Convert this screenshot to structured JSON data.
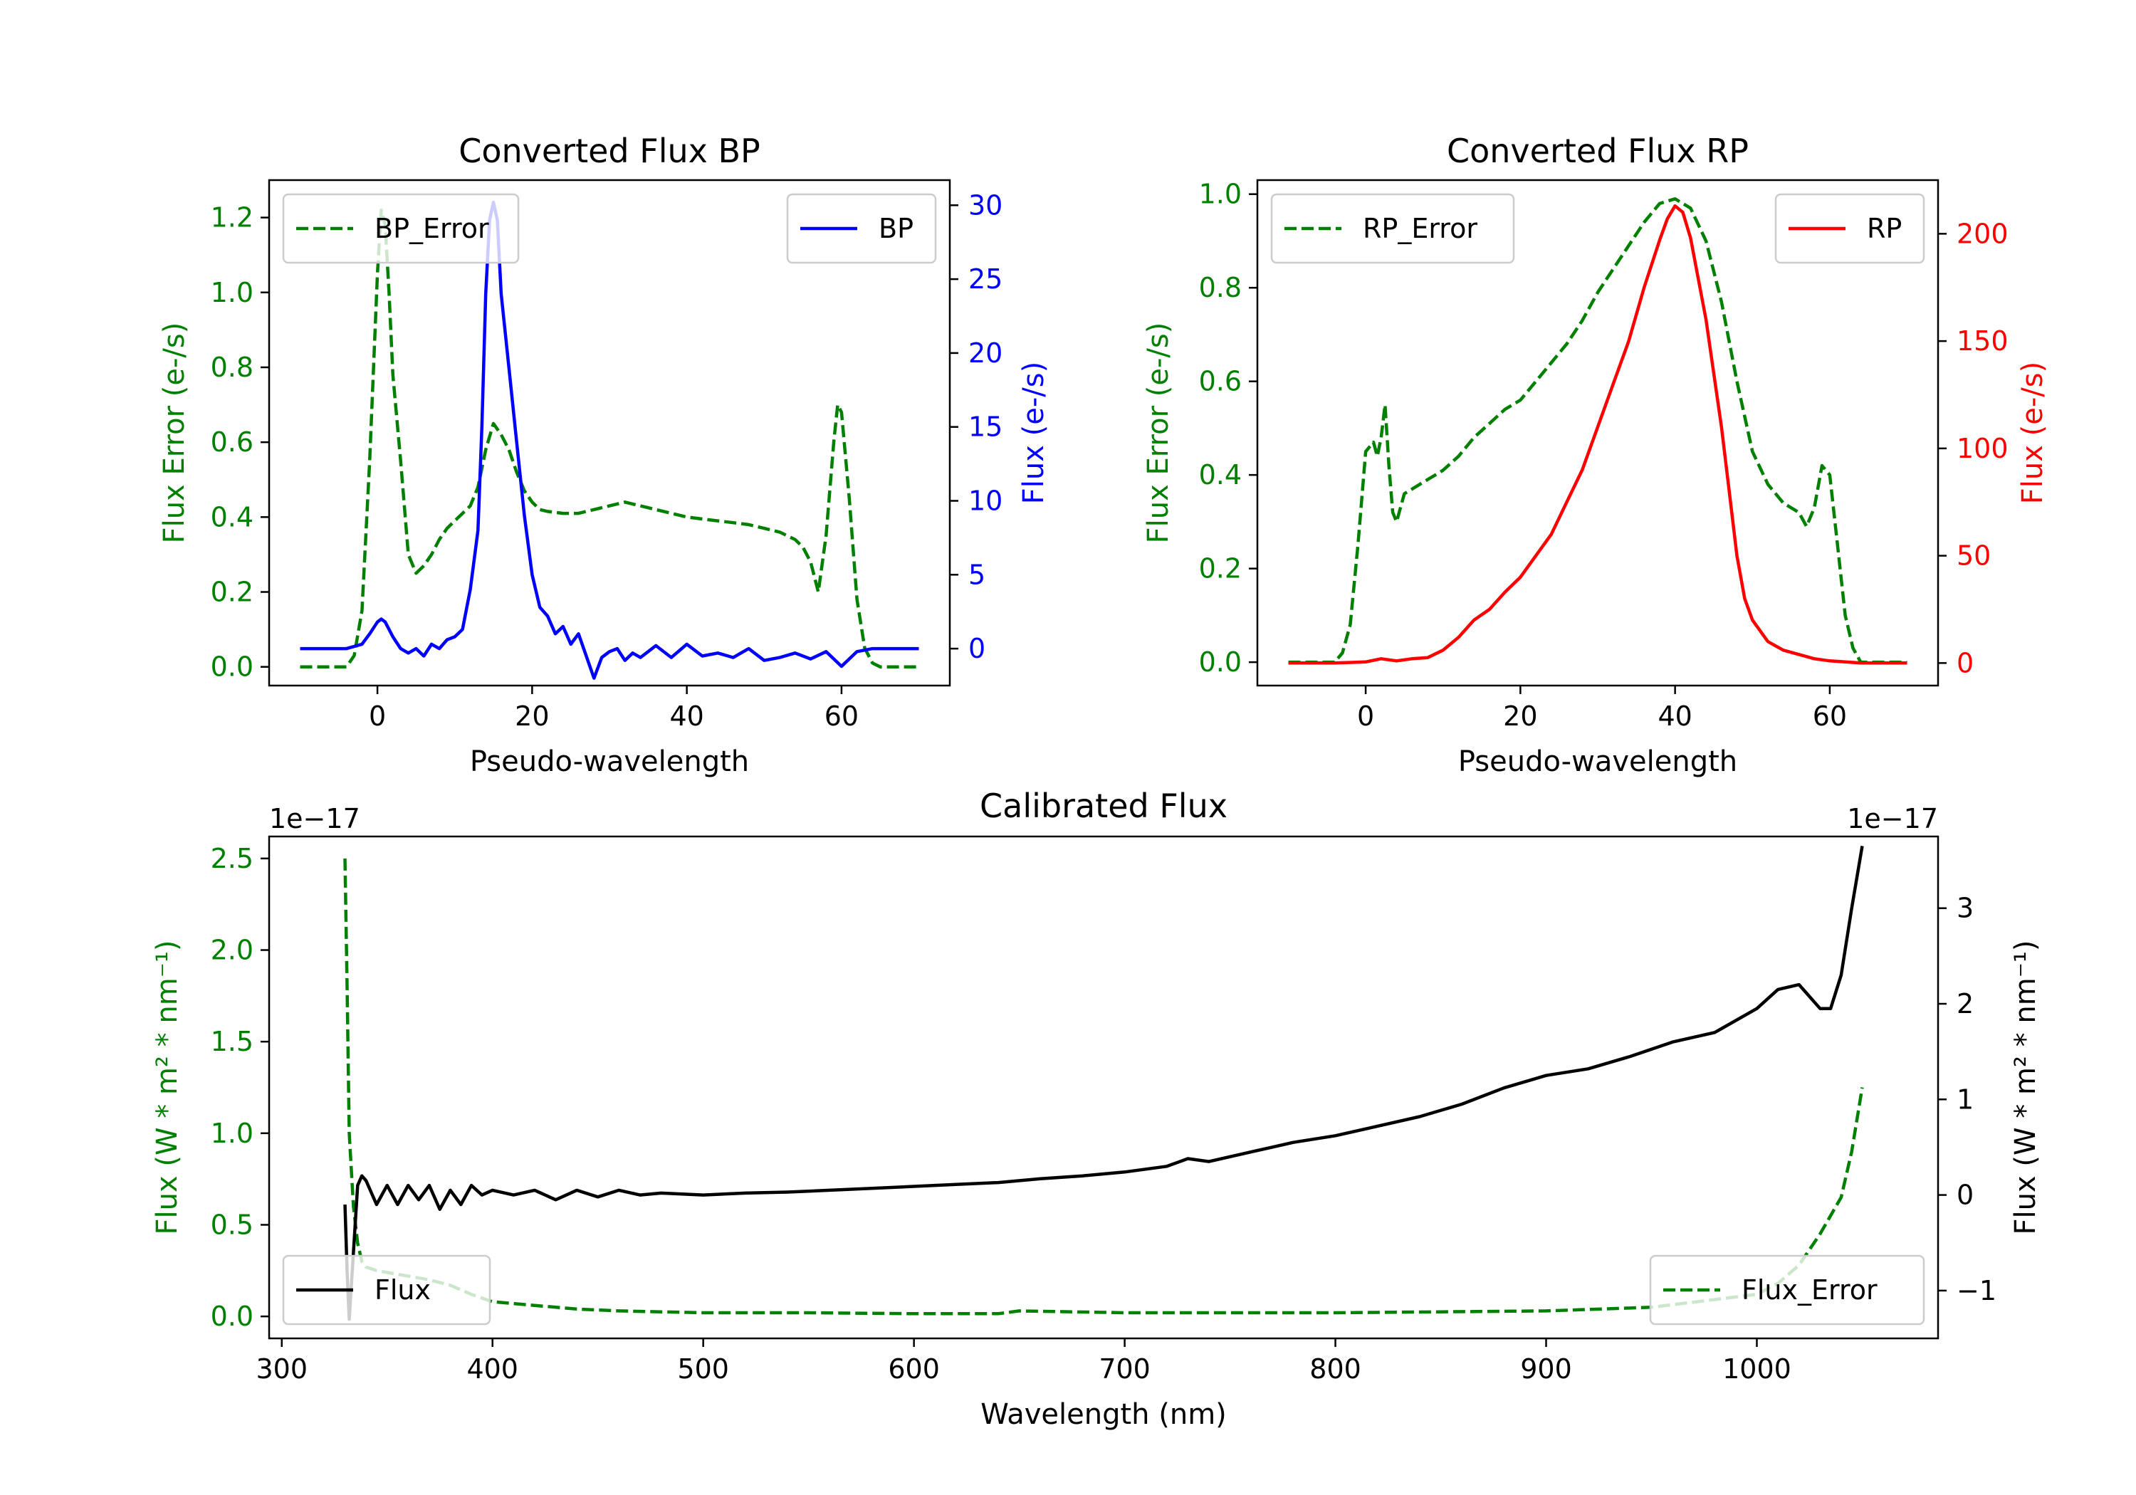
{
  "chart_data": [
    {
      "id": "bp",
      "type": "line",
      "title": "Converted Flux BP",
      "xlabel": "Pseudo-wavelength",
      "ylabel_left": "Flux Error (e-/s)",
      "ylabel_right": "Flux (e-/s)",
      "xlim": [
        -14,
        74
      ],
      "ylim_left": [
        -0.05,
        1.3
      ],
      "ylim_right": [
        -2.5,
        31.7
      ],
      "xticks": [
        0,
        20,
        40,
        60
      ],
      "yticks_left": [
        0.0,
        0.2,
        0.4,
        0.6,
        0.8,
        1.0,
        1.2
      ],
      "yticks_right": [
        0,
        5,
        10,
        15,
        20,
        25,
        30
      ],
      "colors": {
        "left": "#008000",
        "right": "#0000ff"
      },
      "series": [
        {
          "name": "BP_Error",
          "axis": "left",
          "style": "dashed",
          "color": "#008000",
          "x": [
            -10,
            -4,
            -3,
            -2,
            -1,
            0,
            0.5,
            1,
            1.5,
            2,
            3,
            4,
            5,
            6,
            7,
            8,
            9,
            10,
            11,
            12,
            13,
            14,
            15,
            16,
            17,
            18,
            19,
            20,
            21,
            22,
            24,
            26,
            28,
            30,
            32,
            34,
            36,
            38,
            40,
            42,
            44,
            46,
            48,
            50,
            52,
            54,
            55,
            56,
            57,
            58,
            59,
            59.5,
            60,
            61,
            62,
            63,
            64,
            65,
            70
          ],
          "y": [
            0.0,
            0.0,
            0.03,
            0.15,
            0.55,
            1.05,
            1.22,
            1.18,
            1.0,
            0.78,
            0.55,
            0.3,
            0.25,
            0.27,
            0.3,
            0.34,
            0.37,
            0.39,
            0.41,
            0.43,
            0.48,
            0.58,
            0.65,
            0.62,
            0.58,
            0.52,
            0.47,
            0.44,
            0.42,
            0.415,
            0.41,
            0.41,
            0.42,
            0.43,
            0.44,
            0.43,
            0.42,
            0.41,
            0.4,
            0.395,
            0.39,
            0.385,
            0.38,
            0.37,
            0.36,
            0.34,
            0.32,
            0.28,
            0.2,
            0.35,
            0.6,
            0.7,
            0.68,
            0.45,
            0.18,
            0.05,
            0.01,
            0.0,
            0.0
          ]
        },
        {
          "name": "BP",
          "axis": "right",
          "style": "solid",
          "color": "#0000ff",
          "x": [
            -10,
            -4,
            -2,
            -1,
            0,
            0.5,
            1,
            2,
            3,
            4,
            5,
            6,
            7,
            8,
            9,
            10,
            11,
            12,
            13,
            13.5,
            14,
            14.5,
            15,
            15.5,
            16,
            17,
            18,
            19,
            20,
            21,
            22,
            23,
            24,
            25,
            26,
            27,
            28,
            29,
            30,
            31,
            32,
            33,
            34,
            35,
            36,
            38,
            40,
            42,
            44,
            46,
            48,
            50,
            52,
            54,
            56,
            58,
            60,
            62,
            64,
            70
          ],
          "y": [
            0.0,
            0.0,
            0.3,
            1.0,
            1.8,
            2.0,
            1.8,
            0.8,
            0.0,
            -0.3,
            0.0,
            -0.5,
            0.3,
            0.0,
            0.6,
            0.8,
            1.3,
            4.0,
            8.0,
            15.0,
            24.0,
            29.0,
            30.2,
            29.0,
            24.0,
            19.0,
            14.0,
            9.0,
            5.0,
            2.8,
            2.2,
            1.0,
            1.5,
            0.3,
            1.0,
            -0.5,
            -2.0,
            -0.6,
            -0.2,
            0.0,
            -0.8,
            -0.3,
            -0.6,
            -0.2,
            0.2,
            -0.6,
            0.3,
            -0.5,
            -0.3,
            -0.6,
            0.0,
            -0.8,
            -0.6,
            -0.3,
            -0.7,
            -0.2,
            -1.2,
            -0.2,
            0.0,
            0.0
          ]
        }
      ],
      "legends": [
        {
          "entries": [
            "BP_Error"
          ],
          "location": "upper left"
        },
        {
          "entries": [
            "BP"
          ],
          "location": "upper right"
        }
      ]
    },
    {
      "id": "rp",
      "type": "line",
      "title": "Converted Flux RP",
      "xlabel": "Pseudo-wavelength",
      "ylabel_left": "Flux Error (e-/s)",
      "ylabel_right": "Flux (e-/s)",
      "xlim": [
        -14,
        74
      ],
      "ylim_left": [
        -0.05,
        1.03
      ],
      "ylim_right": [
        -10.5,
        225
      ],
      "xticks": [
        0,
        20,
        40,
        60
      ],
      "yticks_left": [
        0.0,
        0.2,
        0.4,
        0.6,
        0.8,
        1.0
      ],
      "yticks_right": [
        0,
        50,
        100,
        150,
        200
      ],
      "colors": {
        "left": "#008000",
        "right": "#ff0000"
      },
      "series": [
        {
          "name": "RP_Error",
          "axis": "left",
          "style": "dashed",
          "color": "#008000",
          "x": [
            -10,
            -4,
            -3,
            -2,
            -1,
            0,
            1,
            1.5,
            2,
            2.5,
            3,
            3.5,
            4,
            5,
            6,
            7,
            8,
            9,
            10,
            12,
            14,
            16,
            18,
            20,
            22,
            24,
            26,
            28,
            30,
            32,
            34,
            36,
            38,
            40,
            42,
            44,
            46,
            48,
            50,
            52,
            54,
            56,
            57,
            58,
            59,
            60,
            61,
            62,
            63,
            64,
            70
          ],
          "y": [
            0.0,
            0.0,
            0.02,
            0.08,
            0.25,
            0.45,
            0.47,
            0.44,
            0.48,
            0.55,
            0.42,
            0.32,
            0.3,
            0.36,
            0.37,
            0.38,
            0.39,
            0.4,
            0.41,
            0.44,
            0.48,
            0.51,
            0.54,
            0.56,
            0.6,
            0.64,
            0.68,
            0.73,
            0.79,
            0.84,
            0.89,
            0.94,
            0.98,
            0.99,
            0.97,
            0.9,
            0.77,
            0.6,
            0.45,
            0.38,
            0.34,
            0.32,
            0.29,
            0.33,
            0.42,
            0.4,
            0.25,
            0.1,
            0.03,
            0.0,
            0.0
          ]
        },
        {
          "name": "RP",
          "axis": "right",
          "style": "solid",
          "color": "#ff0000",
          "x": [
            -10,
            -4,
            0,
            2,
            4,
            6,
            8,
            10,
            12,
            14,
            16,
            18,
            20,
            22,
            24,
            26,
            28,
            30,
            32,
            34,
            36,
            38,
            39,
            40,
            41,
            42,
            44,
            46,
            47,
            48,
            49,
            50,
            52,
            54,
            56,
            58,
            60,
            62,
            64,
            70
          ],
          "y": [
            0.0,
            0.0,
            0.5,
            2.0,
            1.0,
            2.0,
            2.5,
            6.0,
            12.0,
            20.0,
            25.0,
            33.0,
            40.0,
            50.0,
            60.0,
            75.0,
            90.0,
            110.0,
            130.0,
            150.0,
            175.0,
            197.0,
            207.0,
            213.0,
            210.0,
            198.0,
            160.0,
            110.0,
            80.0,
            50.0,
            30.0,
            20.0,
            10.0,
            6.0,
            4.0,
            2.0,
            1.0,
            0.5,
            0.0,
            0.0
          ]
        }
      ],
      "legends": [
        {
          "entries": [
            "RP_Error"
          ],
          "location": "upper left"
        },
        {
          "entries": [
            "RP"
          ],
          "location": "upper right"
        }
      ]
    },
    {
      "id": "cal",
      "type": "line",
      "title": "Calibrated Flux",
      "xlabel": "Wavelength (nm)",
      "ylabel_left": "Flux (W * m² * nm⁻¹)",
      "ylabel_right": "Flux (W * m² * nm⁻¹)",
      "offset_left": "1e−17",
      "offset_right": "1e−17",
      "xlim": [
        294,
        1086
      ],
      "ylim_left": [
        -0.12,
        2.62
      ],
      "ylim_right": [
        -1.5,
        3.75
      ],
      "xticks": [
        300,
        400,
        500,
        600,
        700,
        800,
        900,
        1000
      ],
      "yticks_left": [
        0.0,
        0.5,
        1.0,
        1.5,
        2.0,
        2.5
      ],
      "yticks_right": [
        -1,
        0,
        1,
        2,
        3
      ],
      "colors": {
        "left": "#008000",
        "right": "#000000"
      },
      "series": [
        {
          "name": "Flux_Error",
          "axis": "left",
          "style": "dashed",
          "color": "#008000",
          "x": [
            330,
            331,
            332,
            334,
            336,
            338,
            340,
            345,
            350,
            360,
            370,
            380,
            390,
            400,
            420,
            440,
            460,
            480,
            500,
            550,
            600,
            640,
            650,
            700,
            750,
            800,
            850,
            900,
            950,
            1000,
            1010,
            1020,
            1030,
            1040,
            1045,
            1050
          ],
          "y": [
            2.5,
            1.8,
            1.0,
            0.6,
            0.4,
            0.3,
            0.27,
            0.25,
            0.24,
            0.22,
            0.2,
            0.17,
            0.12,
            0.08,
            0.06,
            0.04,
            0.03,
            0.025,
            0.02,
            0.02,
            0.015,
            0.015,
            0.03,
            0.02,
            0.02,
            0.02,
            0.025,
            0.03,
            0.05,
            0.12,
            0.18,
            0.28,
            0.45,
            0.65,
            0.9,
            1.25
          ]
        },
        {
          "name": "Flux",
          "axis": "right",
          "style": "solid",
          "color": "#000000",
          "x": [
            330,
            331,
            332,
            334,
            336,
            338,
            340,
            345,
            350,
            355,
            360,
            365,
            370,
            375,
            380,
            385,
            390,
            395,
            400,
            410,
            420,
            430,
            440,
            450,
            460,
            470,
            480,
            500,
            520,
            540,
            560,
            580,
            600,
            620,
            640,
            660,
            680,
            700,
            720,
            730,
            740,
            760,
            780,
            800,
            820,
            840,
            860,
            880,
            900,
            920,
            940,
            960,
            980,
            1000,
            1010,
            1020,
            1030,
            1035,
            1040,
            1045,
            1050
          ],
          "y": [
            -0.1,
            -0.8,
            -1.3,
            -0.6,
            0.1,
            0.2,
            0.15,
            -0.1,
            0.1,
            -0.1,
            0.1,
            -0.05,
            0.1,
            -0.15,
            0.05,
            -0.1,
            0.1,
            0.0,
            0.05,
            0.0,
            0.05,
            -0.05,
            0.05,
            -0.02,
            0.05,
            0.0,
            0.02,
            0.0,
            0.02,
            0.03,
            0.05,
            0.07,
            0.09,
            0.11,
            0.13,
            0.17,
            0.2,
            0.24,
            0.3,
            0.38,
            0.35,
            0.45,
            0.55,
            0.62,
            0.72,
            0.82,
            0.95,
            1.12,
            1.25,
            1.32,
            1.45,
            1.6,
            1.7,
            1.95,
            2.15,
            2.2,
            1.95,
            1.95,
            2.3,
            3.0,
            3.65
          ]
        }
      ],
      "legends": [
        {
          "entries": [
            "Flux"
          ],
          "location": "lower left"
        },
        {
          "entries": [
            "Flux_Error"
          ],
          "location": "lower right"
        }
      ]
    }
  ]
}
